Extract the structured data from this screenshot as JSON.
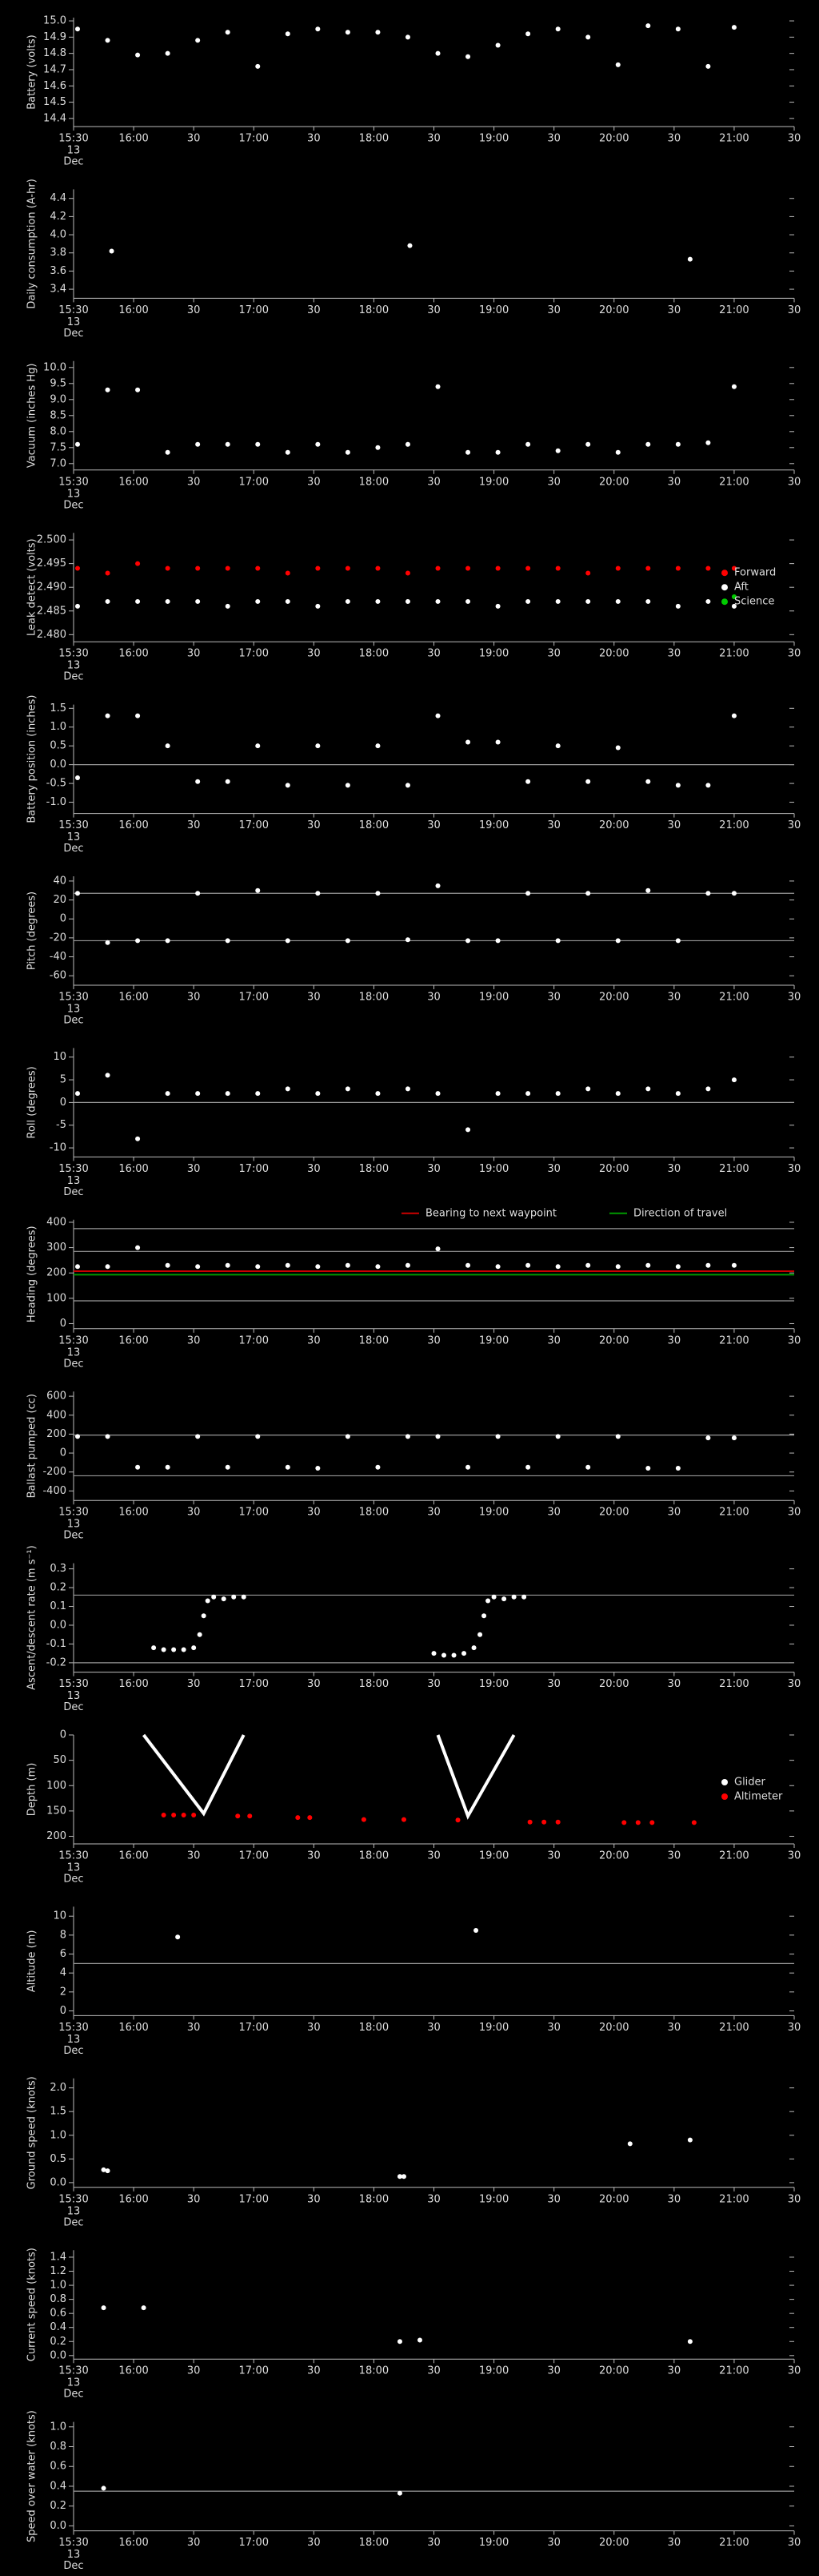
{
  "x_axis": {
    "xlim": [
      "15:30",
      "21:30"
    ],
    "xticks": [
      "15:30",
      "16:00",
      {
        "value": "16:30",
        "label": "30"
      },
      "17:00",
      {
        "value": "17:30",
        "label": "30"
      },
      "18:00",
      {
        "value": "18:30",
        "label": "30"
      },
      "19:00",
      {
        "value": "19:30",
        "label": "30"
      },
      "20:00",
      {
        "value": "20:30",
        "label": "30"
      },
      "21:00",
      {
        "value": "21:30",
        "label": "30"
      }
    ],
    "sublabel": [
      "13",
      "Dec"
    ]
  },
  "chart_data": [
    {
      "type": "scatter",
      "ylabel": "Battery (volts)",
      "ylim": [
        14.35,
        15.02
      ],
      "yticks": [
        14.4,
        14.5,
        14.6,
        14.7,
        14.8,
        14.9,
        {
          "value": 15,
          "label": "15.0"
        }
      ],
      "series": [
        {
          "color": "#ffffff",
          "x": [
            "15:32",
            "15:47",
            "16:02",
            "16:17",
            "16:32",
            "16:47",
            "17:02",
            "17:17",
            "17:32",
            "17:47",
            "18:02",
            "18:17",
            "18:32",
            "18:47",
            "19:02",
            "19:17",
            "19:32",
            "19:47",
            "20:02",
            "20:17",
            "20:32",
            "20:47",
            "21:00"
          ],
          "values": [
            14.95,
            14.88,
            14.79,
            14.8,
            14.88,
            14.93,
            14.72,
            14.92,
            14.95,
            14.93,
            14.93,
            14.9,
            14.8,
            14.78,
            14.85,
            14.92,
            14.95,
            14.9,
            14.73,
            14.97,
            14.95,
            14.72,
            14.96
          ]
        }
      ]
    },
    {
      "type": "scatter",
      "ylabel": "Daily consumption (A-hr)",
      "ylim": [
        3.3,
        4.5
      ],
      "yticks": [
        3.4,
        3.6,
        3.8,
        {
          "value": 4,
          "label": "4.0"
        },
        4.2,
        4.4
      ],
      "series": [
        {
          "color": "#ffffff",
          "x": [
            "15:49",
            "18:18",
            "20:38"
          ],
          "values": [
            3.82,
            3.88,
            3.73
          ]
        }
      ]
    },
    {
      "type": "scatter",
      "ylabel": "Vacuum (inches Hg)",
      "ylim": [
        6.8,
        10.2
      ],
      "yticks": [
        {
          "value": 7,
          "label": "7.0"
        },
        7.5,
        {
          "value": 8,
          "label": "8.0"
        },
        8.5,
        {
          "value": 9,
          "label": "9.0"
        },
        9.5,
        {
          "value": 10,
          "label": "10.0"
        }
      ],
      "series": [
        {
          "color": "#ffffff",
          "x": [
            "15:32",
            "15:47",
            "16:02",
            "16:17",
            "16:32",
            "16:47",
            "17:02",
            "17:17",
            "17:32",
            "17:47",
            "18:02",
            "18:17",
            "18:32",
            "18:47",
            "19:02",
            "19:17",
            "19:32",
            "19:47",
            "20:02",
            "20:17",
            "20:32",
            "20:47",
            "21:00"
          ],
          "values": [
            7.6,
            9.3,
            9.3,
            7.35,
            7.6,
            7.6,
            7.6,
            7.35,
            7.6,
            7.35,
            7.5,
            7.6,
            9.4,
            7.35,
            7.35,
            7.6,
            7.4,
            7.6,
            7.35,
            7.6,
            7.6,
            7.65,
            9.4
          ]
        }
      ]
    },
    {
      "type": "scatter",
      "ylabel": "Leak detect (volts)",
      "ylim": [
        2.4785,
        2.5015
      ],
      "yticks": [
        {
          "value": 2.48,
          "label": "2.480"
        },
        2.485,
        {
          "value": 2.49,
          "label": "2.490"
        },
        2.495,
        {
          "value": 2.5,
          "label": "2.500"
        }
      ],
      "legend": "right",
      "series": [
        {
          "name": "Forward",
          "color": "#ff0000",
          "x": [
            "15:32",
            "15:47",
            "16:02",
            "16:17",
            "16:32",
            "16:47",
            "17:02",
            "17:17",
            "17:32",
            "17:47",
            "18:02",
            "18:17",
            "18:32",
            "18:47",
            "19:02",
            "19:17",
            "19:32",
            "19:47",
            "20:02",
            "20:17",
            "20:32",
            "20:47",
            "21:00"
          ],
          "values": [
            2.494,
            2.493,
            2.495,
            2.494,
            2.494,
            2.494,
            2.494,
            2.493,
            2.494,
            2.494,
            2.494,
            2.493,
            2.494,
            2.494,
            2.494,
            2.494,
            2.494,
            2.493,
            2.494,
            2.494,
            2.494,
            2.494,
            2.494
          ]
        },
        {
          "name": "Aft",
          "color": "#ffffff",
          "x": [
            "15:32",
            "15:47",
            "16:02",
            "16:17",
            "16:32",
            "16:47",
            "17:02",
            "17:17",
            "17:32",
            "17:47",
            "18:02",
            "18:17",
            "18:32",
            "18:47",
            "19:02",
            "19:17",
            "19:32",
            "19:47",
            "20:02",
            "20:17",
            "20:32",
            "20:47",
            "21:00"
          ],
          "values": [
            2.486,
            2.487,
            2.487,
            2.487,
            2.487,
            2.486,
            2.487,
            2.487,
            2.486,
            2.487,
            2.487,
            2.487,
            2.487,
            2.487,
            2.486,
            2.487,
            2.487,
            2.487,
            2.487,
            2.487,
            2.486,
            2.487,
            2.486
          ]
        },
        {
          "name": "Science",
          "color": "#00cc00",
          "x": [
            "21:00"
          ],
          "values": [
            2.488
          ]
        }
      ]
    },
    {
      "type": "scatter",
      "ylabel": "Battery position (inches)",
      "ylim": [
        -1.3,
        1.6
      ],
      "yticks": [
        {
          "value": -1,
          "label": "-1.0"
        },
        -0.5,
        {
          "value": 0,
          "label": "0.0"
        },
        0.5,
        {
          "value": 1,
          "label": "1.0"
        },
        1.5
      ],
      "hlines": [
        0
      ],
      "series": [
        {
          "color": "#ffffff",
          "x": [
            "15:32",
            "15:47",
            "16:02",
            "16:17",
            "16:32",
            "16:47",
            "17:02",
            "17:17",
            "17:32",
            "17:47",
            "18:02",
            "18:17",
            "18:32",
            "18:47",
            "19:02",
            "19:17",
            "19:32",
            "19:47",
            "20:02",
            "20:17",
            "20:32",
            "20:47",
            "21:00"
          ],
          "values": [
            -0.35,
            1.3,
            1.3,
            0.5,
            -0.45,
            -0.45,
            0.5,
            -0.55,
            0.5,
            -0.55,
            0.5,
            -0.55,
            1.3,
            0.6,
            0.6,
            -0.45,
            0.5,
            -0.45,
            0.45,
            -0.45,
            -0.55,
            -0.55,
            1.3
          ]
        }
      ]
    },
    {
      "type": "scatter",
      "ylabel": "Pitch (degrees)",
      "ylim": [
        -70,
        45
      ],
      "yticks": [
        -60,
        -40,
        -20,
        0,
        20,
        40
      ],
      "hlines": [
        27,
        -23
      ],
      "series": [
        {
          "color": "#ffffff",
          "x": [
            "15:32",
            "15:47",
            "16:02",
            "16:17",
            "16:32",
            "16:47",
            "17:02",
            "17:17",
            "17:32",
            "17:47",
            "18:02",
            "18:17",
            "18:32",
            "18:47",
            "19:02",
            "19:17",
            "19:32",
            "19:47",
            "20:02",
            "20:17",
            "20:32",
            "20:47",
            "21:00"
          ],
          "values": [
            27,
            -25,
            -23,
            -23,
            27,
            -23,
            30,
            -23,
            27,
            -23,
            27,
            -22,
            35,
            -23,
            -23,
            27,
            -23,
            27,
            -23,
            30,
            -23,
            27,
            27
          ]
        }
      ]
    },
    {
      "type": "scatter",
      "ylabel": "Roll (degrees)",
      "ylim": [
        -12,
        12
      ],
      "yticks": [
        -10,
        -5,
        0,
        5,
        10
      ],
      "hlines": [
        0
      ],
      "series": [
        {
          "color": "#ffffff",
          "x": [
            "15:32",
            "15:47",
            "16:02",
            "16:17",
            "16:32",
            "16:47",
            "17:02",
            "17:17",
            "17:32",
            "17:47",
            "18:02",
            "18:17",
            "18:32",
            "18:47",
            "19:02",
            "19:17",
            "19:32",
            "19:47",
            "20:02",
            "20:17",
            "20:32",
            "20:47",
            "21:00"
          ],
          "values": [
            2,
            6,
            -8,
            2,
            2,
            2,
            2,
            3,
            2,
            3,
            2,
            3,
            2,
            -6,
            2,
            2,
            2,
            3,
            2,
            3,
            2,
            3,
            5
          ]
        }
      ]
    },
    {
      "type": "scatter",
      "ylabel": "Heading (degrees)",
      "ylim": [
        -20,
        410
      ],
      "yticks": [
        0,
        100,
        200,
        300,
        400
      ],
      "hlines": [
        375,
        285,
        90
      ],
      "legend": "top",
      "series": [
        {
          "color": "#ffffff",
          "x": [
            "15:32",
            "15:47",
            "16:02",
            "16:17",
            "16:32",
            "16:47",
            "17:02",
            "17:17",
            "17:32",
            "17:47",
            "18:02",
            "18:17",
            "18:32",
            "18:47",
            "19:02",
            "19:17",
            "19:32",
            "19:47",
            "20:02",
            "20:17",
            "20:32",
            "20:47",
            "21:00"
          ],
          "values": [
            225,
            225,
            300,
            230,
            225,
            230,
            225,
            230,
            225,
            230,
            225,
            230,
            295,
            230,
            225,
            230,
            225,
            230,
            225,
            230,
            225,
            230,
            230
          ]
        },
        {
          "name": "Bearing to next waypoint",
          "color": "#cc0000",
          "mode": "line",
          "x": [
            "15:30",
            "21:30"
          ],
          "values": [
            207,
            207
          ]
        },
        {
          "name": "Direction of travel",
          "color": "#009900",
          "mode": "line",
          "x": [
            "15:30",
            "21:30"
          ],
          "values": [
            193,
            193
          ]
        }
      ]
    },
    {
      "type": "scatter",
      "ylabel": "Ballast pumped (cc)",
      "ylim": [
        -500,
        650
      ],
      "yticks": [
        -400,
        -200,
        0,
        200,
        400,
        600
      ],
      "hlines": [
        190,
        -240
      ],
      "series": [
        {
          "color": "#ffffff",
          "x": [
            "15:32",
            "15:47",
            "16:02",
            "16:17",
            "16:32",
            "16:47",
            "17:02",
            "17:17",
            "17:32",
            "17:47",
            "18:02",
            "18:17",
            "18:32",
            "18:47",
            "19:02",
            "19:17",
            "19:32",
            "19:47",
            "20:02",
            "20:17",
            "20:32",
            "20:47",
            "21:00"
          ],
          "values": [
            175,
            175,
            -150,
            -150,
            175,
            -150,
            175,
            -150,
            -160,
            175,
            -150,
            175,
            175,
            -150,
            175,
            -150,
            175,
            -150,
            175,
            -160,
            -160,
            160,
            160
          ]
        }
      ]
    },
    {
      "type": "scatter",
      "ylabel": "Ascent/descent rate (m s⁻¹)",
      "ylim": [
        -0.25,
        0.33
      ],
      "yticks": [
        -0.2,
        -0.1,
        {
          "value": 0,
          "label": "0.0"
        },
        0.1,
        0.2,
        0.3
      ],
      "hlines": [
        0.16,
        -0.2
      ],
      "series": [
        {
          "color": "#ffffff",
          "x": [
            "16:10",
            "16:15",
            "16:20",
            "16:25",
            "16:30",
            "16:33",
            "16:35",
            "16:37",
            "16:40",
            "16:45",
            "16:50",
            "16:55",
            "18:30",
            "18:35",
            "18:40",
            "18:45",
            "18:50",
            "18:53",
            "18:55",
            "18:57",
            "19:00",
            "19:05",
            "19:10",
            "19:15"
          ],
          "values": [
            -0.12,
            -0.13,
            -0.13,
            -0.13,
            -0.12,
            -0.05,
            0.05,
            0.13,
            0.15,
            0.14,
            0.15,
            0.15,
            -0.15,
            -0.16,
            -0.16,
            -0.15,
            -0.12,
            -0.05,
            0.05,
            0.13,
            0.15,
            0.14,
            0.15,
            0.15
          ]
        }
      ]
    },
    {
      "type": "scatter",
      "ylabel": "Depth (m)",
      "ylim": [
        215,
        0
      ],
      "yticks": [
        0,
        50,
        100,
        150,
        200
      ],
      "legend": "right",
      "series": [
        {
          "name": "Glider",
          "color": "#ffffff",
          "mode": "line",
          "x": [
            "16:05",
            "16:35",
            "16:55",
            "17:40",
            "18:32",
            "18:47",
            "19:10"
          ],
          "values": [
            0,
            155,
            0,
            null,
            0,
            160,
            0
          ]
        },
        {
          "name": "Altimeter",
          "color": "#ff0000",
          "x": [
            "16:15",
            "16:20",
            "16:25",
            "16:30",
            "16:52",
            "16:58",
            "17:22",
            "17:28",
            "17:55",
            "18:15",
            "18:42",
            "19:18",
            "19:25",
            "19:32",
            "20:05",
            "20:12",
            "20:19",
            "20:40"
          ],
          "values": [
            158,
            158,
            158,
            158,
            160,
            160,
            163,
            163,
            167,
            167,
            168,
            172,
            172,
            172,
            173,
            173,
            173,
            173
          ]
        }
      ]
    },
    {
      "type": "scatter",
      "ylabel": "Altitude (m)",
      "ylim": [
        -0.5,
        11
      ],
      "yticks": [
        0,
        2,
        4,
        6,
        8,
        10
      ],
      "hlines": [
        5
      ],
      "series": [
        {
          "color": "#ffffff",
          "x": [
            "16:22",
            "18:51"
          ],
          "values": [
            7.8,
            8.5
          ]
        }
      ]
    },
    {
      "type": "scatter",
      "ylabel": "Ground speed (knots)",
      "ylim": [
        -0.1,
        2.2
      ],
      "yticks": [
        {
          "value": 0,
          "label": "0.0"
        },
        0.5,
        {
          "value": 1,
          "label": "1.0"
        },
        1.5,
        {
          "value": 2,
          "label": "2.0"
        }
      ],
      "series": [
        {
          "color": "#ffffff",
          "x": [
            "15:45",
            "15:47",
            "18:13",
            "18:15",
            "20:08",
            "20:38"
          ],
          "values": [
            0.27,
            0.25,
            0.13,
            0.13,
            0.82,
            0.9
          ]
        }
      ]
    },
    {
      "type": "scatter",
      "ylabel": "Current speed (knots)",
      "ylim": [
        -0.05,
        1.5
      ],
      "yticks": [
        {
          "value": 0,
          "label": "0.0"
        },
        0.2,
        0.4,
        0.6,
        0.8,
        {
          "value": 1,
          "label": "1.0"
        },
        1.2,
        1.4
      ],
      "series": [
        {
          "color": "#ffffff",
          "x": [
            "15:45",
            "16:05",
            "18:13",
            "18:23",
            "20:38"
          ],
          "values": [
            0.68,
            0.68,
            0.2,
            0.22,
            0.2
          ]
        }
      ]
    },
    {
      "type": "scatter",
      "ylabel": "Speed over water (knots)",
      "ylim": [
        -0.05,
        1.05
      ],
      "yticks": [
        {
          "value": 0,
          "label": "0.0"
        },
        0.2,
        0.4,
        0.6,
        0.8,
        {
          "value": 1,
          "label": "1.0"
        }
      ],
      "hlines": [
        0.35
      ],
      "series": [
        {
          "color": "#ffffff",
          "x": [
            "15:45",
            "18:13"
          ],
          "values": [
            0.38,
            0.33
          ]
        }
      ]
    }
  ]
}
